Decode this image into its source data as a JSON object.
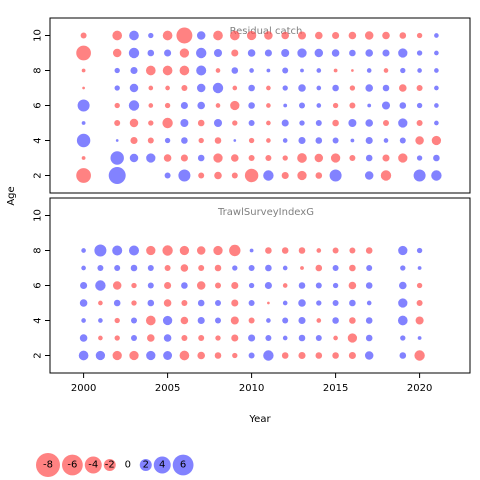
{
  "chart_data": {
    "type": "bubble",
    "xlabel": "Year",
    "ylabel": "Age",
    "xlim": [
      1998,
      2023
    ],
    "ylim": [
      1,
      11
    ],
    "x_ticks": [
      "2000",
      "2005",
      "2010",
      "2015",
      "2020"
    ],
    "y_ticks": [
      "2",
      "4",
      "6",
      "8",
      "10"
    ],
    "colors": {
      "positive": "#4d4dff",
      "negative": "#ff4d4d"
    },
    "max_abs_value": 8,
    "panels": [
      {
        "title": "Residual catch",
        "years": [
          2000,
          2001,
          2002,
          2003,
          2004,
          2005,
          2006,
          2007,
          2008,
          2009,
          2010,
          2011,
          2012,
          2013,
          2014,
          2015,
          2016,
          2017,
          2018,
          2019,
          2020,
          2021
        ],
        "ages": [
          2,
          3,
          4,
          5,
          6,
          7,
          8,
          9,
          10
        ],
        "values": [
          [
            -3.0,
            0,
            4.0,
            0,
            0,
            0.5,
            2.0,
            -0.5,
            -0.8,
            -0.5,
            -2.5,
            1.5,
            -0.7,
            -1.2,
            -0.6,
            2.0,
            0,
            1.0,
            -1.5,
            0,
            2.0,
            1.5
          ],
          [
            -0.2,
            0,
            2.5,
            1.0,
            1.2,
            -0.8,
            -0.7,
            0.6,
            -1.2,
            -0.8,
            -0.5,
            -0.5,
            -0.4,
            -1.3,
            -1.0,
            -1.2,
            -0.5,
            0.6,
            -0.7,
            -1.2,
            0.4,
            0.6
          ],
          [
            2.5,
            0,
            0.1,
            -0.7,
            -0.5,
            0.4,
            0.6,
            -0.4,
            -0.6,
            0.1,
            -0.4,
            -0.3,
            0.3,
            0.7,
            0.6,
            0.5,
            0.2,
            0.7,
            0.3,
            0.5,
            -1.0,
            -1.2
          ],
          [
            0.2,
            0,
            -0.5,
            -1.0,
            -0.4,
            -1.5,
            0.9,
            -0.6,
            0.9,
            -0.4,
            0.5,
            -0.3,
            0.7,
            0.4,
            0.5,
            -0.6,
            0.9,
            0.8,
            -0.5,
            1.2,
            -0.5,
            0.3
          ],
          [
            2.0,
            0,
            -0.4,
            1.5,
            -0.3,
            -0.4,
            0.7,
            0.8,
            -0.3,
            -1.2,
            0.6,
            -0.3,
            0.2,
            0.5,
            0.3,
            -0.4,
            -0.5,
            0.2,
            0.9,
            0.6,
            0.4,
            0.3
          ],
          [
            -0.1,
            0,
            0.4,
            1.0,
            -0.3,
            -0.3,
            -0.5,
            1.0,
            1.5,
            -0.3,
            0.6,
            -0.3,
            0.4,
            0.8,
            0.3,
            0.6,
            -0.4,
            0.8,
            0.6,
            -0.8,
            -0.5,
            0.3
          ],
          [
            -0.2,
            0,
            0.4,
            0.7,
            -1.3,
            -1.3,
            -1.3,
            1.4,
            -0.3,
            0.6,
            0.3,
            0.2,
            0.5,
            0.2,
            0.3,
            -0.2,
            -0.1,
            0.3,
            -0.3,
            0.4,
            0.3,
            0.3
          ],
          [
            -3.0,
            0,
            -1.0,
            1.5,
            0.6,
            0.7,
            -1.2,
            1.5,
            0.9,
            -0.7,
            0.8,
            0.7,
            0.9,
            1.2,
            1.0,
            0.8,
            0.6,
            0.8,
            0.7,
            1.2,
            0.4,
            0.3
          ],
          [
            -0.5,
            0,
            -1.3,
            1.3,
            0.4,
            -1.3,
            -3.5,
            1.0,
            -1.3,
            -1.3,
            -1.2,
            -1.0,
            -0.8,
            -0.9,
            -0.8,
            -0.7,
            -0.8,
            -1.0,
            -0.8,
            -0.6,
            -0.4,
            0.3
          ]
        ]
      },
      {
        "title": "TrawlSurveyIndexG",
        "years": [
          2000,
          2001,
          2002,
          2003,
          2004,
          2005,
          2006,
          2007,
          2008,
          2009,
          2010,
          2011,
          2012,
          2013,
          2014,
          2015,
          2016,
          2017,
          2019,
          2020
        ],
        "ages": [
          2,
          3,
          4,
          5,
          6,
          7,
          8
        ],
        "values": [
          [
            1.3,
            1.2,
            -1.2,
            -1.2,
            1.2,
            1.1,
            -1.3,
            -0.8,
            -0.6,
            -0.4,
            0.5,
            1.5,
            -0.6,
            -0.7,
            -0.6,
            -0.6,
            -0.7,
            1.0,
            0.6,
            -1.5
          ],
          [
            0.8,
            -0.3,
            -0.4,
            0.5,
            -0.8,
            0.8,
            -0.5,
            -0.5,
            -0.4,
            -0.7,
            0.7,
            0.5,
            0.3,
            0.6,
            0.5,
            -0.3,
            -1.2,
            0.6,
            0.4,
            0.2
          ],
          [
            0.3,
            0.3,
            -0.4,
            0.5,
            -1.3,
            1.2,
            -0.8,
            0.7,
            0.5,
            -0.9,
            -0.5,
            0.3,
            0.5,
            0.7,
            -0.3,
            0.6,
            -0.6,
            0.6,
            1.3,
            -0.9
          ],
          [
            0.8,
            -0.3,
            0.6,
            -0.4,
            0.6,
            -0.8,
            -0.5,
            0.6,
            0.5,
            -0.7,
            0.5,
            -0.1,
            0.3,
            0.8,
            0.4,
            0.5,
            0.6,
            0.3,
            1.2,
            -0.5
          ],
          [
            0.7,
            1.5,
            -1.0,
            -0.4,
            0.5,
            -0.7,
            0.6,
            -1.0,
            -0.5,
            -0.7,
            0.4,
            0.7,
            -0.3,
            0.6,
            0.5,
            0.4,
            -0.8,
            0.6,
            0.8,
            -0.4
          ],
          [
            0.3,
            0.5,
            0.5,
            0.6,
            0.5,
            -0.5,
            -0.8,
            -0.5,
            -0.6,
            0.4,
            0.5,
            0.6,
            0.3,
            -0.2,
            -0.6,
            0.5,
            -0.6,
            0.5,
            0.4,
            0.2
          ],
          [
            0.3,
            2.0,
            1.4,
            1.4,
            -1.2,
            -1.5,
            -1.2,
            -1.0,
            -1.2,
            -1.8,
            0.2,
            -0.6,
            -0.6,
            -0.6,
            -0.3,
            -0.5,
            -0.5,
            -0.6,
            1.2,
            0.4
          ]
        ]
      }
    ],
    "legend": {
      "placement": "bottom-left",
      "values": [
        -8,
        -6,
        -4,
        -2,
        0,
        2,
        4,
        6
      ],
      "labels": [
        "-8",
        "-6",
        "-4",
        "-2",
        "0",
        "2",
        "4",
        "6"
      ]
    }
  }
}
